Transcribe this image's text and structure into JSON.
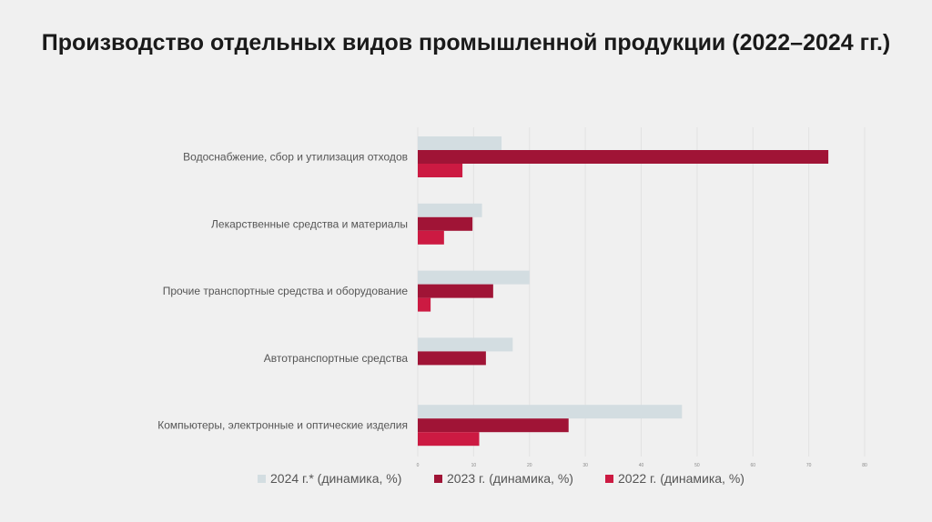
{
  "title": "Производство отдельных видов промышленной продукции (2022–2024 гг.)",
  "chart_data": {
    "type": "bar",
    "orientation": "horizontal",
    "categories": [
      "Водоснабжение, сбор и утилизация отходов",
      "Лекарственные средства и материалы",
      "Прочие транспортные средства и оборудование",
      "Автотранспортные средства",
      "Компьютеры, электронные и оптические изделия"
    ],
    "series": [
      {
        "name": "2024 г.* (динамика, %)",
        "color": "#d3dde1",
        "values": [
          15,
          11.5,
          20,
          17,
          47.3
        ]
      },
      {
        "name": "2023 г. (динамика, %)",
        "color": "#a01436",
        "values": [
          73.5,
          9.8,
          13.5,
          12.2,
          27
        ]
      },
      {
        "name": "2022 г. (динамика, %)",
        "color": "#cc1a42",
        "values": [
          8,
          4.7,
          2.3,
          0,
          11
        ]
      }
    ],
    "xlim": [
      0,
      80
    ],
    "xticks": [
      0,
      10,
      20,
      30,
      40,
      50,
      60,
      70,
      80
    ],
    "grid": true,
    "legend_position": "bottom"
  }
}
